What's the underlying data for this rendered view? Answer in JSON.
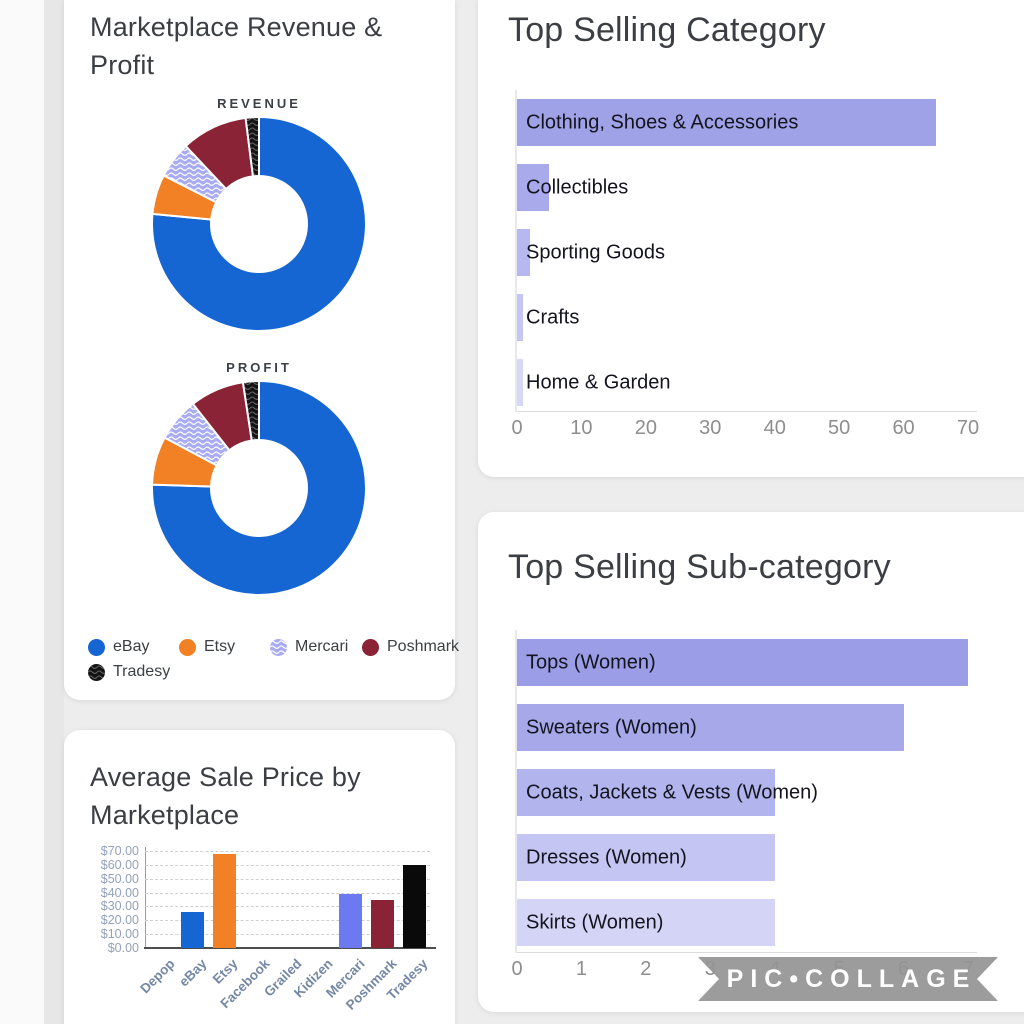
{
  "watermark": {
    "text": "PIC•COLLAGE"
  },
  "chart_data": [
    {
      "type": "donut",
      "title": "Marketplace Revenue & Profit",
      "legend_position": "bottom",
      "legend": [
        {
          "label": "eBay",
          "color": "#1565d3",
          "pattern": null
        },
        {
          "label": "Etsy",
          "color": "#f28024",
          "pattern": null
        },
        {
          "label": "Mercari",
          "color": "#a9abf3",
          "pattern": "wave-light"
        },
        {
          "label": "Poshmark",
          "color": "#8b2336",
          "pattern": null
        },
        {
          "label": "Tradesy",
          "color": "#161616",
          "pattern": "wave-dark"
        }
      ],
      "sub_charts": [
        {
          "title": "REVENUE",
          "values_pct": [
            76.5,
            6.0,
            5.5,
            10.0,
            2.0
          ]
        },
        {
          "title": "PROFIT",
          "values_pct": [
            75.5,
            7.3,
            6.6,
            8.2,
            2.4
          ]
        }
      ],
      "unit": "percent of total"
    },
    {
      "type": "bar",
      "orientation": "horizontal",
      "title": "Top Selling Category",
      "categories": [
        "Clothing, Shoes & Accessories",
        "Collectibles",
        "Sporting Goods",
        "Crafts",
        "Home & Garden"
      ],
      "values": [
        65,
        5,
        2,
        1,
        1
      ],
      "bar_colors": [
        "#a0a2e7",
        "#a8aaeb",
        "#b6b8ef",
        "#c5c6f3",
        "#d7d8f8"
      ],
      "xlim": [
        0,
        70
      ],
      "xticks": [
        "0",
        "10",
        "20",
        "30",
        "40",
        "50",
        "60",
        "70"
      ],
      "grid": false
    },
    {
      "type": "bar",
      "orientation": "horizontal",
      "title": "Top Selling Sub-category",
      "categories": [
        "Tops (Women)",
        "Sweaters (Women)",
        "Coats, Jackets & Vests (Women)",
        "Dresses (Women)",
        "Skirts (Women)"
      ],
      "values": [
        7,
        6,
        4,
        4,
        4
      ],
      "bar_colors": [
        "#9b9de6",
        "#a6a8ea",
        "#b2b4ee",
        "#c4c5f2",
        "#d4d5f6"
      ],
      "xlim": [
        0,
        7
      ],
      "xticks": [
        "0",
        "1",
        "2",
        "3",
        "4",
        "5",
        "6",
        "7"
      ],
      "grid": false
    },
    {
      "type": "bar",
      "orientation": "vertical",
      "title": "Average Sale Price by Marketplace",
      "categories": [
        "Depop",
        "eBay",
        "Etsy",
        "Facebook",
        "Grailed",
        "Kidizen",
        "Mercari",
        "Poshmark",
        "Tradesy"
      ],
      "values": [
        0,
        26,
        68,
        0,
        0,
        0,
        39,
        35,
        60
      ],
      "bar_colors": [
        "#1565d3",
        "#1565d3",
        "#f28024",
        "#1565d3",
        "#1565d3",
        "#1565d3",
        "#6d79f1",
        "#8b2336",
        "#0a0a0a"
      ],
      "ylim": [
        0,
        70
      ],
      "yticks": [
        "$70.00",
        "$60.00",
        "$50.00",
        "$40.00",
        "$30.00",
        "$20.00",
        "$10.00",
        "$0.00"
      ],
      "grid": true
    }
  ]
}
